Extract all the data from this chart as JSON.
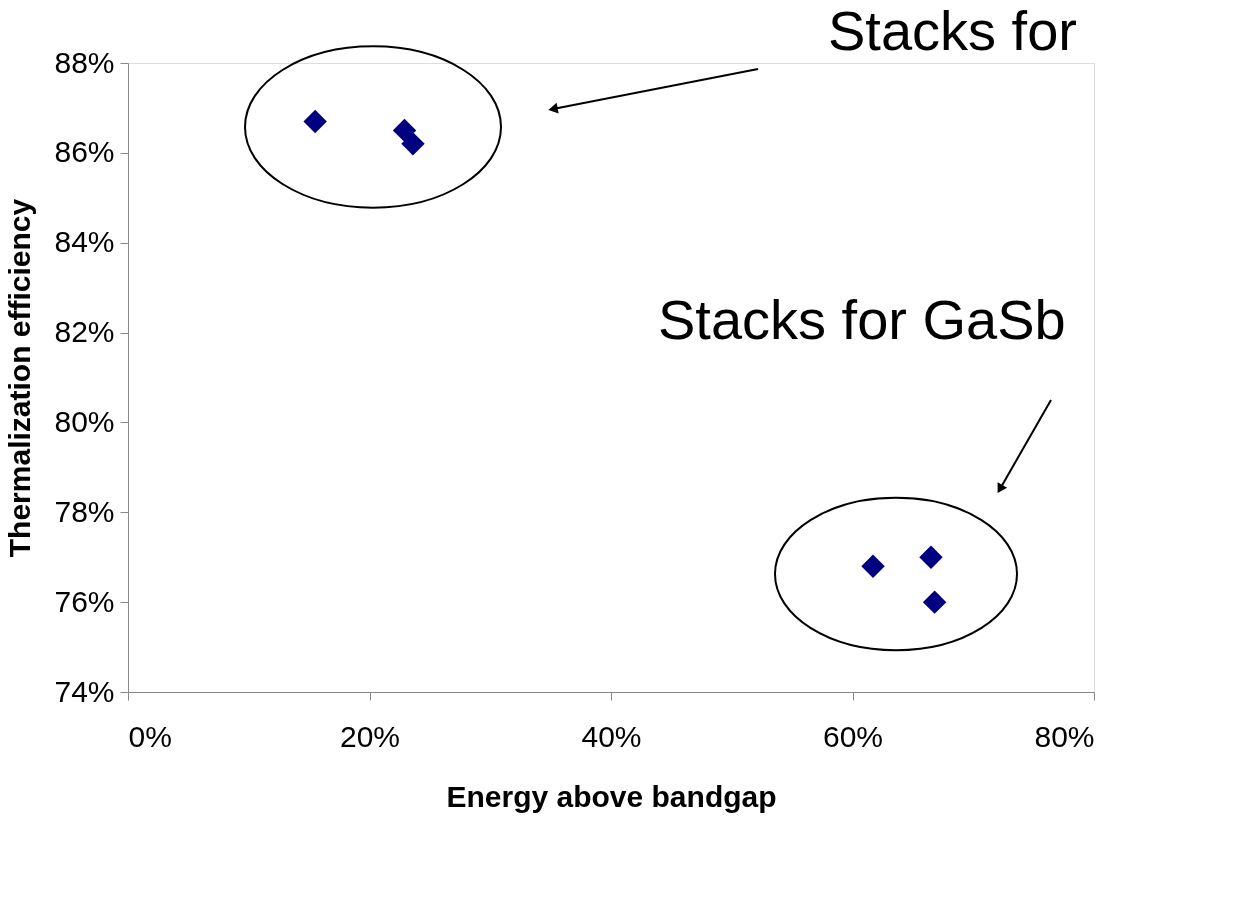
{
  "chart_data": {
    "type": "scatter",
    "xlabel": "Energy above bandgap",
    "ylabel": "Thermalization efficiency",
    "x": [
      15.5,
      22.9,
      23.6,
      61.7,
      66.5,
      66.8
    ],
    "series": [
      {
        "color": "#000080",
        "values": [
          86.7,
          86.5,
          86.2,
          76.8,
          77.0,
          76.0
        ]
      }
    ],
    "marker": "diamond",
    "grid": false,
    "legend": false,
    "xlim": [
      0,
      80
    ],
    "xticks": [
      {
        "value": 0,
        "label": "0%"
      },
      {
        "value": 20,
        "label": "20%"
      },
      {
        "value": 40,
        "label": "40%"
      },
      {
        "value": 60,
        "label": "60%"
      },
      {
        "value": 80,
        "label": "80%"
      }
    ],
    "ylim": [
      74,
      88
    ],
    "yticks": [
      {
        "value": 74,
        "label": "74%"
      },
      {
        "value": 76,
        "label": "76%"
      },
      {
        "value": 78,
        "label": "78%"
      },
      {
        "value": 80,
        "label": "80%"
      },
      {
        "value": 82,
        "label": "82%"
      },
      {
        "value": 84,
        "label": "84%"
      },
      {
        "value": 86,
        "label": "86%"
      },
      {
        "value": 88,
        "label": "88%"
      }
    ],
    "annotations": [
      "Stacks for",
      "Stacks for GaSb"
    ]
  }
}
